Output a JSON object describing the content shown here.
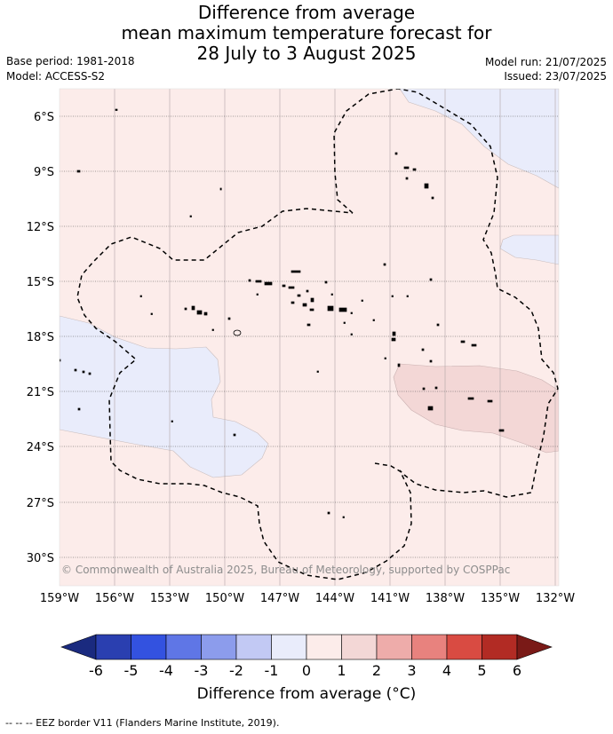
{
  "header": {
    "title_line1": "Difference from average",
    "title_line2": "mean maximum temperature forecast for",
    "title_line3": "28 July to 3 August 2025",
    "base_period": "Base period: 1981-2018",
    "model": "Model: ACCESS-S2",
    "model_run": "Model run: 21/07/2025",
    "issued": "Issued: 23/07/2025"
  },
  "map": {
    "lat_labels": [
      "6°S",
      "9°S",
      "12°S",
      "15°S",
      "18°S",
      "21°S",
      "24°S",
      "27°S",
      "30°S"
    ],
    "lon_labels": [
      "159°W",
      "156°W",
      "153°W",
      "150°W",
      "147°W",
      "144°W",
      "141°W",
      "138°W",
      "135°W",
      "132°W"
    ],
    "copyright": "© Commonwealth of Australia 2025, Bureau of Meteorology, supported by COSPPac",
    "colors": {
      "background_anomaly": "#fcecea",
      "cool_anomaly": "#e9ecfb",
      "warm_anomaly": "#f3d7d6"
    }
  },
  "colorbar": {
    "ticks": [
      "-6",
      "-5",
      "-4",
      "-3",
      "-2",
      "-1",
      "0",
      "1",
      "2",
      "3",
      "4",
      "5",
      "6"
    ],
    "colors": [
      "#1a2a7f",
      "#2a3fb0",
      "#3352e0",
      "#5f76e6",
      "#8c9cec",
      "#c2c9f4",
      "#e9ecfb",
      "#fcecea",
      "#f3d7d6",
      "#eeacaa",
      "#e8827e",
      "#d94b42",
      "#b22b24",
      "#7a1a17"
    ],
    "label": "Difference from average (°C)"
  },
  "footer": {
    "legend_text": "-- --  -- EEZ border V11 (Flanders Marine Institute, 2019)."
  }
}
